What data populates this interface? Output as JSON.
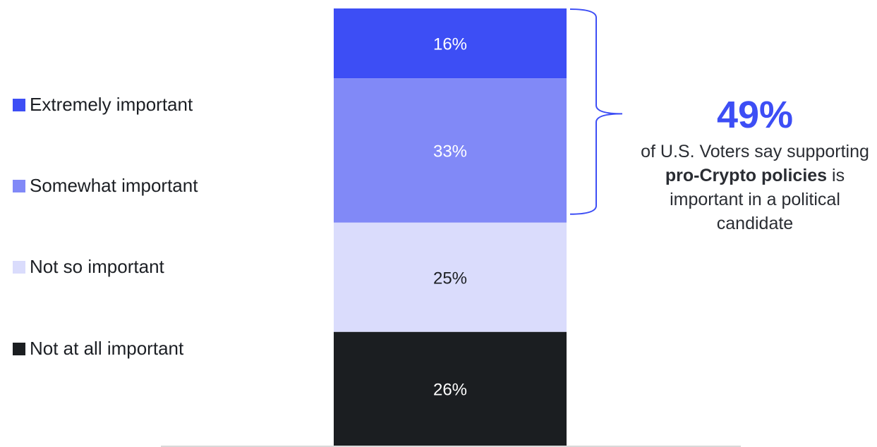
{
  "chart_data": {
    "type": "bar",
    "stacked": true,
    "categories": [
      ""
    ],
    "series": [
      {
        "name": "Extremely important",
        "values": [
          16
        ],
        "label": "16%",
        "color": "#3d4ef5"
      },
      {
        "name": "Somewhat important",
        "values": [
          33
        ],
        "label": "33%",
        "color": "#8189f7"
      },
      {
        "name": "Not so important",
        "values": [
          25
        ],
        "label": "25%",
        "color": "#dadcfc"
      },
      {
        "name": "Not at all important",
        "values": [
          26
        ],
        "label": "26%",
        "color": "#1b1e21"
      }
    ],
    "legend_position": "left",
    "grid": false,
    "ylim": [
      0,
      100
    ]
  },
  "callout": {
    "value": "49%",
    "value_color": "#3d4ef5",
    "text_before": "of U.S. Voters say supporting",
    "text_bold": "pro-Crypto policies",
    "text_after": "is important in a political candidate",
    "bracket_color": "#3d4ef5"
  }
}
